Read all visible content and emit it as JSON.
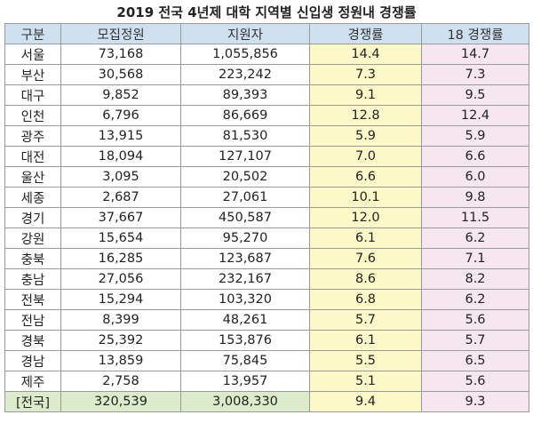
{
  "chart_data": {
    "type": "table",
    "title": "2019 전국 4년제 대학 지역별 신입생 정원내 경쟁률",
    "columns": [
      "구분",
      "모집정원",
      "지원자",
      "경쟁률",
      "18 경쟁률"
    ],
    "rows": [
      [
        "서울",
        "73,168",
        "1,055,856",
        "14.4",
        "14.7"
      ],
      [
        "부산",
        "30,568",
        "223,242",
        "7.3",
        "7.3"
      ],
      [
        "대구",
        "9,852",
        "89,393",
        "9.1",
        "9.5"
      ],
      [
        "인천",
        "6,796",
        "86,669",
        "12.8",
        "12.4"
      ],
      [
        "광주",
        "13,915",
        "81,530",
        "5.9",
        "5.9"
      ],
      [
        "대전",
        "18,094",
        "127,107",
        "7.0",
        "6.6"
      ],
      [
        "울산",
        "3,095",
        "20,502",
        "6.6",
        "6.0"
      ],
      [
        "세종",
        "2,687",
        "27,061",
        "10.1",
        "9.8"
      ],
      [
        "경기",
        "37,667",
        "450,587",
        "12.0",
        "11.5"
      ],
      [
        "강원",
        "15,654",
        "95,270",
        "6.1",
        "6.2"
      ],
      [
        "충북",
        "16,285",
        "123,687",
        "7.6",
        "7.1"
      ],
      [
        "충남",
        "27,056",
        "232,167",
        "8.6",
        "8.2"
      ],
      [
        "전북",
        "15,294",
        "103,320",
        "6.8",
        "6.2"
      ],
      [
        "전남",
        "8,399",
        "48,261",
        "5.7",
        "5.6"
      ],
      [
        "경북",
        "25,392",
        "153,876",
        "6.1",
        "5.7"
      ],
      [
        "경남",
        "13,859",
        "75,845",
        "5.5",
        "6.5"
      ],
      [
        "제주",
        "2,758",
        "13,957",
        "5.1",
        "5.6"
      ]
    ],
    "total": [
      "[전국]",
      "320,539",
      "3,008,330",
      "9.4",
      "9.3"
    ],
    "colors": {
      "header_bg": "#cfe0f1",
      "competition_bg": "#fdf8c8",
      "competition18_bg": "#f6e6ef",
      "total_bg": "#dcebc9",
      "border": "#9a9a9a"
    }
  }
}
